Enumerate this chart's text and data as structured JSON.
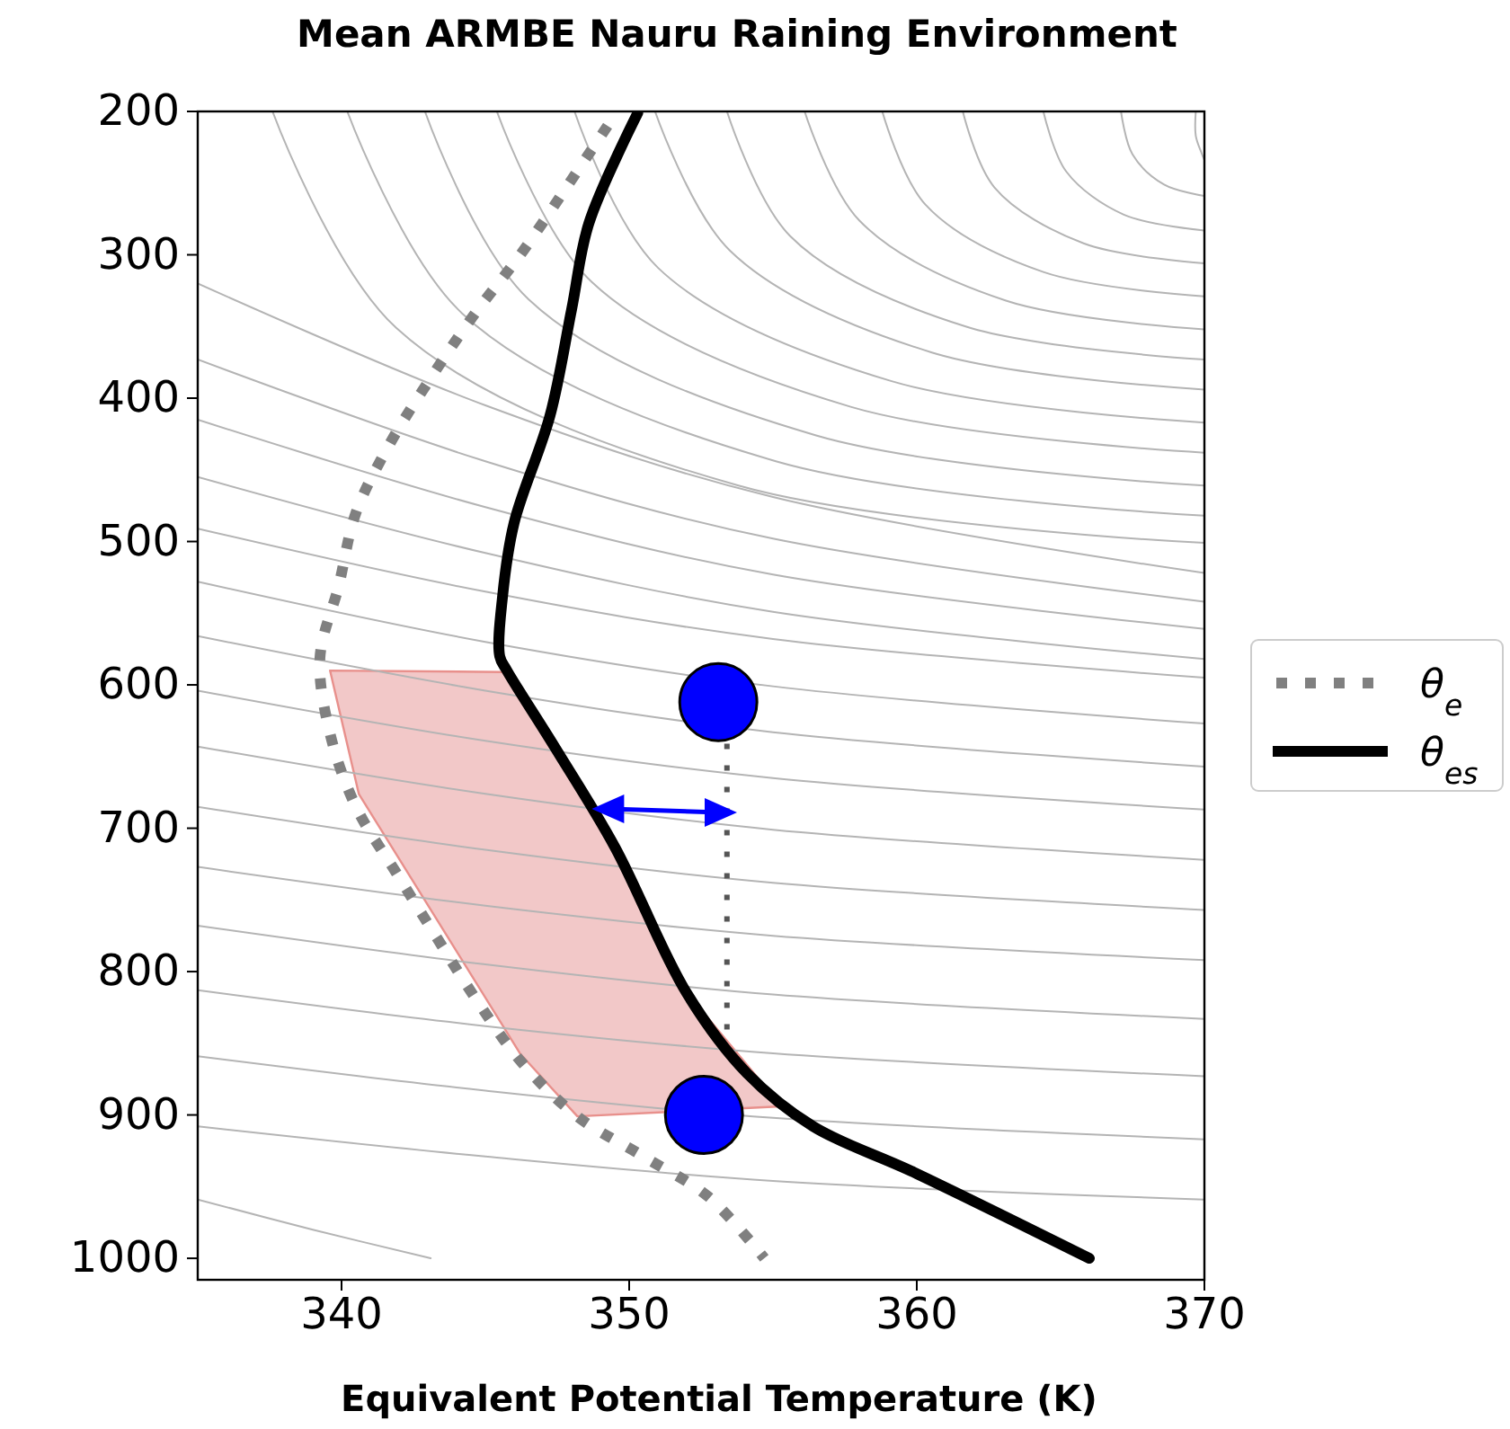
{
  "chart_data": {
    "type": "line",
    "title": "Mean ARMBE Nauru Raining Environment",
    "xlabel": "Equivalent Potential Temperature (K)",
    "xlim": [
      335,
      370
    ],
    "xticks": [
      340,
      350,
      360,
      370
    ],
    "ylim": [
      1015,
      200
    ],
    "yticks": [
      200,
      300,
      400,
      500,
      600,
      700,
      800,
      900,
      1000
    ],
    "legend": "right",
    "grid": false,
    "series": [
      {
        "type": "line",
        "color": "#b4b4b4",
        "x": [
          369.7,
          369.7,
          369.9,
          370
        ],
        "values": [
          200,
          217,
          229,
          234
        ]
      },
      {
        "type": "line",
        "color": "#b4b4b4",
        "x": [
          367.1,
          367.5,
          368.6,
          370
        ],
        "values": [
          200,
          230,
          251,
          259
        ]
      },
      {
        "type": "line",
        "color": "#b4b4b4",
        "x": [
          364.4,
          365.2,
          367.2,
          370
        ],
        "values": [
          200,
          242,
          272,
          283
        ]
      },
      {
        "type": "line",
        "color": "#b4b4b4",
        "x": [
          361.6,
          362.7,
          365.8,
          370
        ],
        "values": [
          200,
          253,
          292,
          306
        ]
      },
      {
        "type": "line",
        "color": "#b4b4b4",
        "x": [
          358.8,
          360.3,
          364.4,
          370
        ],
        "values": [
          200,
          265,
          312,
          329
        ]
      },
      {
        "type": "line",
        "color": "#b4b4b4",
        "x": [
          356.1,
          358,
          363.1,
          370
        ],
        "values": [
          200,
          276,
          332,
          352
        ]
      },
      {
        "type": "line",
        "color": "#b4b4b4",
        "x": [
          353.4,
          355.6,
          361.7,
          370
        ],
        "values": [
          200,
          287,
          350,
          373
        ]
      },
      {
        "type": "line",
        "color": "#b4b4b4",
        "x": [
          350.9,
          353.5,
          360.5,
          370
        ],
        "values": [
          200,
          297,
          368,
          394
        ]
      },
      {
        "type": "line",
        "color": "#b4b4b4",
        "x": [
          348.1,
          351,
          359.1,
          370
        ],
        "values": [
          200,
          309,
          388,
          417
        ]
      },
      {
        "type": "line",
        "color": "#b4b4b4",
        "x": [
          345.4,
          348.7,
          357.7,
          370
        ],
        "values": [
          200,
          319,
          406,
          438
        ]
      },
      {
        "type": "line",
        "color": "#b4b4b4",
        "x": [
          342.9,
          346.5,
          356.5,
          370
        ],
        "values": [
          200,
          331,
          426,
          461
        ]
      },
      {
        "type": "line",
        "color": "#b4b4b4",
        "x": [
          340.2,
          344.2,
          355.1,
          370
        ],
        "values": [
          200,
          341,
          444,
          482
        ]
      },
      {
        "type": "line",
        "color": "#b4b4b4",
        "x": [
          337.6,
          341.9,
          353.8,
          370
        ],
        "values": [
          200,
          351,
          461,
          501
        ]
      },
      {
        "type": "line",
        "color": "#b4b4b4",
        "x": [
          335,
          345,
          355,
          370
        ],
        "values": [
          320,
          405,
          469,
          522
        ]
      },
      {
        "type": "line",
        "color": "#b4b4b4",
        "x": [
          335,
          345,
          355,
          370
        ],
        "values": [
          373,
          444,
          498,
          542
        ]
      },
      {
        "type": "line",
        "color": "#b4b4b4",
        "x": [
          335,
          345,
          355,
          370
        ],
        "values": [
          415,
          476,
          523,
          561
        ]
      },
      {
        "type": "line",
        "color": "#b4b4b4",
        "x": [
          335,
          345,
          355,
          370
        ],
        "values": [
          455,
          508,
          549,
          582
        ]
      },
      {
        "type": "line",
        "color": "#b4b4b4",
        "x": [
          335,
          345,
          355,
          370
        ],
        "values": [
          491,
          535,
          568,
          595
        ]
      },
      {
        "type": "line",
        "color": "#b4b4b4",
        "x": [
          335,
          345,
          355,
          370
        ],
        "values": [
          528,
          570,
          601,
          627
        ]
      },
      {
        "color": "#b4b4b4",
        "x": [
          335,
          345,
          355,
          370
        ],
        "values": [
          566,
          604,
          633,
          657
        ]
      },
      {
        "color": "#b4b4b4",
        "x": [
          335,
          345,
          355,
          370
        ],
        "values": [
          604,
          639,
          665,
          687
        ]
      },
      {
        "type": "line",
        "color": "#b4b4b4",
        "x": [
          335,
          345,
          355,
          370
        ],
        "values": [
          643,
          676,
          701,
          722
        ]
      },
      {
        "type": "line",
        "color": "#b4b4b4",
        "x": [
          335,
          345,
          355,
          370
        ],
        "values": [
          685,
          715,
          738,
          757
        ]
      },
      {
        "type": "line",
        "color": "#b4b4b4",
        "x": [
          335,
          345,
          355,
          370
        ],
        "values": [
          727,
          754,
          775,
          792
        ]
      },
      {
        "type": "line",
        "color": "#b4b4b4",
        "x": [
          335,
          345,
          355,
          370
        ],
        "values": [
          768,
          795,
          816,
          833
        ]
      },
      {
        "type": "line",
        "color": "#b4b4b4",
        "x": [
          335,
          345,
          355,
          370
        ],
        "values": [
          813,
          838,
          857,
          873
        ]
      },
      {
        "type": "line",
        "color": "#b4b4b4",
        "x": [
          335,
          345,
          355,
          370
        ],
        "values": [
          859,
          883,
          902,
          917
        ]
      },
      {
        "type": "line",
        "color": "#b4b4b4",
        "x": [
          335,
          345,
          355,
          370
        ],
        "values": [
          908,
          929,
          946,
          959
        ]
      },
      {
        "type": "line",
        "color": "#b4b4b4",
        "x": [
          335,
          339,
          343.1
        ],
        "values": [
          959,
          980,
          1000
        ]
      },
      {
        "type": "area",
        "color": "#f2c8c8",
        "x": [
          339.6,
          345.6,
          349.5,
          352.1,
          355.3,
          348.2,
          346.2,
          340.6
        ],
        "values": [
          590,
          591,
          710,
          817,
          894,
          901,
          857,
          676
        ]
      },
      {
        "type": "line",
        "name": "θ$_{e}$",
        "color": "#808080",
        "line_style": "dotted",
        "x": [
          349.25,
          347.75,
          346.25,
          344.6,
          343.1,
          341.7,
          340.5,
          339.9,
          339.25,
          339.6,
          340.5,
          341.9,
          343.3,
          344.7,
          346.25,
          348.2,
          350.5,
          352.75,
          354.7
        ],
        "values": [
          210,
          255,
          299,
          342,
          386,
          431,
          480,
          531,
          581,
          634,
          685,
          731,
          776,
          820,
          863,
          901,
          929,
          957,
          1000
        ]
      },
      {
        "type": "line",
        "name": "θ$_{es}$",
        "color": "#000000",
        "x": [
          350.3,
          348.6,
          348,
          347.25,
          346,
          345.6,
          345.5,
          345.75,
          347.4,
          349.5,
          352,
          354.1,
          356.4,
          359.9,
          366
        ],
        "values": [
          201,
          278,
          338,
          412,
          487,
          538,
          580,
          590,
          643,
          713,
          815,
          871,
          908,
          940,
          1000
        ]
      },
      {
        "type": "line",
        "color": "#555555",
        "line_style": "dotted",
        "x": [
          353.4,
          353.4
        ],
        "values": [
          641,
          843
        ]
      },
      {
        "type": "scatter",
        "color": "#0000ff",
        "marker": "circle",
        "x": [
          353.1,
          352.6
        ],
        "values": [
          612,
          900
        ]
      }
    ]
  }
}
